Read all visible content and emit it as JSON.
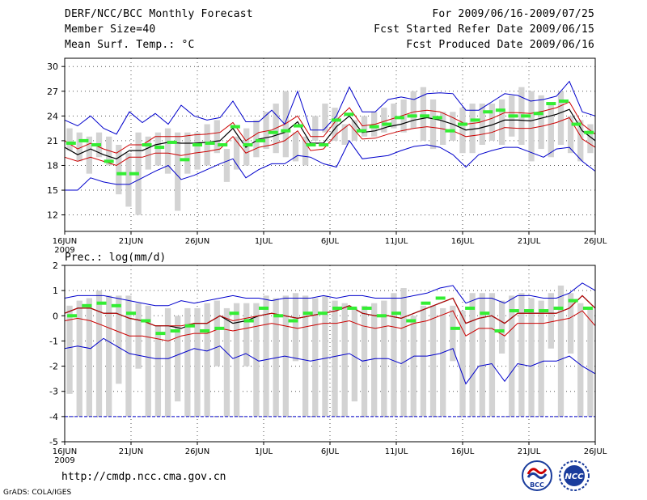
{
  "header": {
    "title": "DERF/NCC/BCC Monthly Forecast",
    "member_size": "Member Size=40",
    "variable": "Mean Surf. Temp.: °C",
    "period": "For 2009/06/16-2009/07/25",
    "refer_date": "Fcst Started Refer Date 2009/06/15",
    "produced_date": "Fcst Produced Date 2009/06/16"
  },
  "footer": {
    "url": "http://cmdp.ncc.cma.gov.cn",
    "credit": "GrADS: COLA/IGES",
    "logo_left_label": "BCC",
    "logo_right_label": "NCC"
  },
  "colors": {
    "box": "#d3d3d3",
    "mean": "#000000",
    "inner": "#cc0000",
    "outer": "#0000cc",
    "obs": "#33ee33",
    "grid": "#555555"
  },
  "chart_data": [
    {
      "type": "box-ensemble",
      "title": "Mean Surf. Temp.: °C",
      "ylabel": "",
      "ylim": [
        10,
        31
      ],
      "yticks": [
        12,
        15,
        18,
        21,
        24,
        27,
        30
      ],
      "xlim": [
        0,
        40
      ],
      "xticks": [
        0,
        5,
        10,
        15,
        20,
        25,
        30,
        35,
        40
      ],
      "xticklabels": [
        "16JUN",
        "21JUN",
        "26JUN",
        "1JUL",
        "6JUL",
        "11JUL",
        "16JUL",
        "21JUL",
        "26JUL"
      ],
      "xsublabel": "2009",
      "boxes": {
        "low": [
          19.8,
          18.5,
          17.0,
          19.0,
          18.0,
          14.5,
          13.0,
          12.0,
          17.5,
          18.0,
          17.0,
          12.5,
          17.0,
          17.5,
          18.0,
          19.5,
          16.0,
          17.5,
          18.0,
          19.0,
          20.0,
          19.5,
          19.0,
          18.5,
          18.0,
          21.0,
          22.0,
          21.0,
          20.5,
          21.0,
          21.5,
          21.5,
          22.0,
          22.5,
          22.0,
          22.5,
          21.0,
          20.0,
          20.5,
          21.0,
          19.5,
          19.5,
          20.5,
          21.0,
          20.5,
          21.5,
          20.5,
          18.5,
          20.0,
          19.0,
          20.5,
          19.5,
          18.5,
          19.5
        ],
        "high": [
          22.5,
          22.0,
          21.5,
          22.0,
          21.5,
          20.5,
          19.5,
          22.0,
          21.5,
          22.0,
          22.5,
          22.0,
          22.0,
          22.0,
          23.0,
          23.5,
          20.0,
          21.5,
          22.5,
          23.5,
          24.5,
          25.5,
          27.0,
          22.0,
          21.5,
          24.0,
          25.5,
          25.0,
          23.0,
          23.5,
          24.0,
          24.5,
          25.0,
          25.5,
          26.0,
          27.0,
          27.5,
          26.0,
          24.5,
          24.5,
          25.0,
          25.5,
          25.5,
          25.5,
          26.0,
          26.5,
          27.5,
          27.0,
          26.5,
          25.5,
          27.0,
          24.0,
          23.5,
          23.0
        ]
      },
      "series": [
        {
          "name": "ensemble-mean",
          "values": [
            20.2,
            19.3,
            20.0,
            19.3,
            18.8,
            19.8,
            19.8,
            20.5,
            20.8,
            20.7,
            20.7,
            20.8,
            21.0,
            22.5,
            20.2,
            21.2,
            21.5,
            22.0,
            23.3,
            20.7,
            20.7,
            22.7,
            24.0,
            22.0,
            22.2,
            22.7,
            23.0,
            23.5,
            23.8,
            23.5,
            23.0,
            22.3,
            22.5,
            22.9,
            23.5,
            23.5,
            23.4,
            23.8,
            24.2,
            24.8,
            22.2,
            21.0
          ]
        },
        {
          "name": "inner-upper",
          "values": [
            21.0,
            20.0,
            20.7,
            20.0,
            19.5,
            20.5,
            20.5,
            21.5,
            21.5,
            21.5,
            21.7,
            21.8,
            22.0,
            23.2,
            21.0,
            22.0,
            22.3,
            23.0,
            24.0,
            21.5,
            21.5,
            23.5,
            25.0,
            22.8,
            23.0,
            23.5,
            24.0,
            24.5,
            24.7,
            24.5,
            23.8,
            23.0,
            23.2,
            23.7,
            24.4,
            24.4,
            24.3,
            24.6,
            25.0,
            25.7,
            23.0,
            21.8
          ]
        },
        {
          "name": "inner-lower",
          "values": [
            19.0,
            18.5,
            19.0,
            18.5,
            18.0,
            19.0,
            19.0,
            19.5,
            19.5,
            19.2,
            19.5,
            19.7,
            20.0,
            21.5,
            19.5,
            20.2,
            20.5,
            21.0,
            22.2,
            19.8,
            20.0,
            21.8,
            23.0,
            21.2,
            21.3,
            21.8,
            22.2,
            22.5,
            22.7,
            22.5,
            22.2,
            21.5,
            21.7,
            22.0,
            22.6,
            22.5,
            22.5,
            22.8,
            23.2,
            23.8,
            21.2,
            20.2
          ]
        },
        {
          "name": "outer-upper",
          "values": [
            23.5,
            22.8,
            24.0,
            22.5,
            21.8,
            24.5,
            23.2,
            24.3,
            23.0,
            25.3,
            24.0,
            23.5,
            23.8,
            25.8,
            23.3,
            23.3,
            24.7,
            23.0,
            27.0,
            22.3,
            22.3,
            24.0,
            27.5,
            24.5,
            24.5,
            26.0,
            26.3,
            26.0,
            26.7,
            26.8,
            26.7,
            24.7,
            24.7,
            25.7,
            26.7,
            26.5,
            25.8,
            26.0,
            26.4,
            28.2,
            24.5,
            24.0
          ]
        },
        {
          "name": "outer-lower",
          "values": [
            15.0,
            15.0,
            16.5,
            16.0,
            15.7,
            15.7,
            16.5,
            17.3,
            18.0,
            16.3,
            16.8,
            17.5,
            18.2,
            18.8,
            16.5,
            17.5,
            18.2,
            18.2,
            19.2,
            19.0,
            18.2,
            17.8,
            21.0,
            18.8,
            19.0,
            19.2,
            19.8,
            20.3,
            20.5,
            20.2,
            19.3,
            17.8,
            19.3,
            19.8,
            20.2,
            20.2,
            19.6,
            19.0,
            20.0,
            20.2,
            18.5,
            17.3
          ]
        }
      ],
      "observed": [
        20.7,
        21.0,
        20.5,
        18.5,
        17.0,
        17.0,
        20.5,
        20.2,
        20.8,
        18.7,
        20.5,
        20.7,
        20.5,
        22.7,
        20.5,
        21.0,
        22.0,
        22.2,
        22.8,
        20.5,
        20.5,
        23.5,
        24.2,
        22.2,
        22.7,
        23.0,
        23.8,
        24.0,
        24.0,
        23.8,
        22.2,
        23.0,
        23.5,
        24.5,
        24.7,
        24.0,
        24.0,
        24.3,
        25.5,
        25.8,
        23.0,
        22.0
      ]
    },
    {
      "type": "box-ensemble",
      "title": "Prec.: log(mm/d)",
      "ylabel": "",
      "ylim": [
        -5,
        2
      ],
      "yticks": [
        -5,
        -4,
        -3,
        -2,
        -1,
        0,
        1,
        2
      ],
      "xlim": [
        0,
        40
      ],
      "xticks": [
        0,
        5,
        10,
        15,
        20,
        25,
        30,
        35,
        40
      ],
      "xticklabels": [
        "16JUN",
        "21JUN",
        "26JUN",
        "1JUL",
        "6JUL",
        "11JUL",
        "16JUL",
        "21JUL",
        "26JUL"
      ],
      "xsublabel": "2009",
      "boxes": {
        "low": [
          -3.1,
          -4.0,
          -4.0,
          -4.0,
          -4.0,
          -2.7,
          -4.0,
          -2.1,
          -4.0,
          -4.0,
          -4.0,
          -3.4,
          -4.0,
          -4.0,
          -4.0,
          -2.0,
          -4.0,
          -4.0,
          -2.0,
          -4.0,
          -4.0,
          -4.0,
          -4.0,
          -1.8,
          -4.0,
          -4.0,
          -4.0,
          -4.0,
          -4.0,
          -3.4,
          -4.0,
          -4.0,
          -4.0,
          -4.0,
          -4.0,
          -4.0,
          -4.0,
          -4.0,
          -4.0,
          -1.8,
          -4.0,
          -4.0,
          -4.0,
          -4.0,
          -1.5,
          -4.0,
          -4.0,
          -4.0,
          -4.0,
          -1.3,
          -4.0,
          -1.5,
          -4.0,
          -4.0
        ],
        "high": [
          0.4,
          0.6,
          0.7,
          1.0,
          0.8,
          0.8,
          0.8,
          0.5,
          0.4,
          -0.4,
          0.3,
          0.0,
          0.3,
          0.3,
          0.5,
          0.6,
          0.3,
          0.5,
          0.5,
          0.5,
          0.8,
          0.7,
          0.8,
          0.9,
          0.8,
          0.7,
          0.8,
          0.6,
          0.5,
          0.3,
          0.4,
          0.5,
          0.6,
          0.9,
          1.1,
          0.0,
          0.4,
          0.4,
          0.3,
          0.4,
          0.2,
          0.9,
          0.9,
          0.9,
          0.6,
          0.8,
          0.9,
          0.7,
          0.6,
          0.9,
          1.2,
          0.9,
          0.5,
          0.3
        ]
      },
      "series": [
        {
          "name": "ensemble-mean",
          "values": [
            0.1,
            0.3,
            0.3,
            0.1,
            0.1,
            -0.1,
            -0.2,
            -0.4,
            -0.4,
            -0.5,
            -0.3,
            -0.3,
            0.0,
            -0.3,
            -0.2,
            0.0,
            0.1,
            0.0,
            -0.1,
            0.0,
            0.1,
            0.2,
            0.4,
            0.1,
            0.0,
            0.0,
            -0.1,
            0.1,
            0.3,
            0.5,
            0.7,
            -0.3,
            -0.1,
            0.0,
            -0.3,
            0.1,
            0.1,
            0.1,
            0.1,
            0.3,
            0.8,
            0.3
          ]
        },
        {
          "name": "inner-upper",
          "values": [
            0.1,
            0.3,
            0.3,
            0.1,
            0.1,
            -0.1,
            -0.2,
            -0.4,
            -0.4,
            -0.4,
            -0.3,
            -0.3,
            0.0,
            -0.2,
            -0.1,
            0.0,
            0.1,
            0.0,
            -0.1,
            0.0,
            0.1,
            0.2,
            0.4,
            0.1,
            0.0,
            0.0,
            -0.1,
            0.1,
            0.3,
            0.5,
            0.7,
            -0.3,
            -0.1,
            0.0,
            -0.3,
            0.1,
            0.1,
            0.1,
            0.1,
            0.3,
            0.8,
            0.3
          ]
        },
        {
          "name": "inner-lower",
          "values": [
            -0.2,
            -0.1,
            -0.2,
            -0.4,
            -0.6,
            -0.8,
            -0.8,
            -0.9,
            -1.0,
            -0.8,
            -0.7,
            -0.7,
            -0.5,
            -0.6,
            -0.5,
            -0.4,
            -0.3,
            -0.4,
            -0.5,
            -0.4,
            -0.3,
            -0.3,
            -0.2,
            -0.4,
            -0.5,
            -0.4,
            -0.5,
            -0.3,
            -0.2,
            0.0,
            0.2,
            -0.8,
            -0.5,
            -0.5,
            -0.8,
            -0.3,
            -0.3,
            -0.3,
            -0.2,
            -0.1,
            0.2,
            -0.4
          ]
        },
        {
          "name": "outer-upper",
          "values": [
            0.7,
            0.8,
            0.8,
            0.8,
            0.7,
            0.6,
            0.5,
            0.4,
            0.4,
            0.6,
            0.5,
            0.6,
            0.7,
            0.8,
            0.7,
            0.7,
            0.6,
            0.7,
            0.7,
            0.7,
            0.8,
            0.7,
            0.8,
            0.8,
            0.7,
            0.7,
            0.7,
            0.8,
            0.9,
            1.1,
            1.2,
            0.5,
            0.7,
            0.7,
            0.5,
            0.8,
            0.8,
            0.7,
            0.7,
            0.9,
            1.3,
            1.0
          ]
        },
        {
          "name": "outer-lower",
          "values": [
            -1.3,
            -1.2,
            -1.3,
            -0.9,
            -1.2,
            -1.5,
            -1.6,
            -1.7,
            -1.7,
            -1.5,
            -1.3,
            -1.4,
            -1.2,
            -1.7,
            -1.5,
            -1.8,
            -1.7,
            -1.6,
            -1.7,
            -1.8,
            -1.7,
            -1.6,
            -1.5,
            -1.8,
            -1.7,
            -1.7,
            -1.9,
            -1.6,
            -1.6,
            -1.5,
            -1.3,
            -2.7,
            -2.0,
            -1.9,
            -2.6,
            -1.9,
            -2.0,
            -1.8,
            -1.8,
            -1.6,
            -2.0,
            -2.3
          ]
        },
        {
          "name": "no-rain-floor",
          "values": [
            -4,
            -4,
            -4,
            -4,
            -4,
            -4,
            -4,
            -4,
            -4,
            -4,
            -4,
            -4,
            -4,
            -4,
            -4,
            -4,
            -4,
            -4,
            -4,
            -4,
            -4,
            -4,
            -4,
            -4,
            -4,
            -4,
            -4,
            -4,
            -4,
            -4,
            -4,
            -4,
            -4,
            -4,
            -4,
            -4,
            -4,
            -4,
            -4,
            -4,
            -4,
            -4
          ]
        }
      ],
      "observed": [
        0.0,
        0.4,
        0.5,
        0.4,
        0.1,
        -0.2,
        -0.7,
        -0.6,
        -0.4,
        -0.6,
        -0.5,
        0.1,
        -0.2,
        0.3,
        0.0,
        -0.2,
        0.1,
        0.1,
        0.3,
        0.3,
        0.3,
        0.0,
        0.1,
        -0.2,
        0.5,
        0.7,
        -0.5,
        0.3,
        0.1,
        -0.6,
        0.2,
        0.2,
        0.2,
        0.3,
        0.6,
        0.3
      ]
    }
  ]
}
